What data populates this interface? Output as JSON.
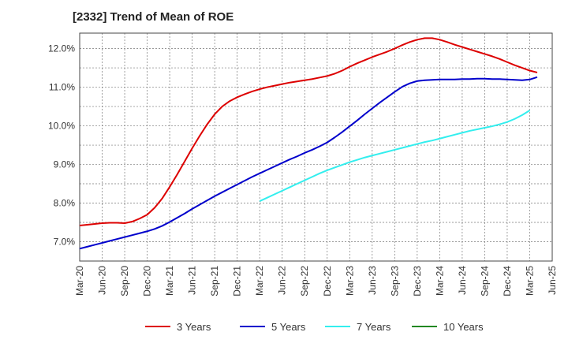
{
  "title": "[2332]  Trend of Mean of ROE",
  "chart_data": {
    "type": "line",
    "title": "[2332]  Trend of Mean of ROE",
    "xlabel": "",
    "ylabel": "",
    "ylim": [
      6.5,
      12.4
    ],
    "y_ticks": [
      7.0,
      8.0,
      9.0,
      10.0,
      11.0,
      12.0
    ],
    "y_tick_labels": [
      "7.0%",
      "8.0%",
      "9.0%",
      "10.0%",
      "11.0%",
      "12.0%"
    ],
    "x_tick_labels": [
      "Mar-20",
      "Jun-20",
      "Sep-20",
      "Dec-20",
      "Mar-21",
      "Jun-21",
      "Sep-21",
      "Dec-21",
      "Mar-22",
      "Jun-22",
      "Sep-22",
      "Dec-22",
      "Mar-23",
      "Jun-23",
      "Sep-23",
      "Dec-23",
      "Mar-24",
      "Jun-24",
      "Sep-24",
      "Dec-24",
      "Mar-25",
      "Jun-25"
    ],
    "grid": true,
    "legend_position": "bottom",
    "series": [
      {
        "name": "3 Years",
        "color": "#dd0000",
        "start_month": "Mar-20",
        "values": [
          7.42,
          7.44,
          7.46,
          7.48,
          7.49,
          7.49,
          7.48,
          7.52,
          7.6,
          7.7,
          7.88,
          8.12,
          8.42,
          8.74,
          9.08,
          9.42,
          9.74,
          10.04,
          10.3,
          10.5,
          10.64,
          10.74,
          10.82,
          10.89,
          10.95,
          11.0,
          11.04,
          11.08,
          11.12,
          11.15,
          11.18,
          11.21,
          11.25,
          11.29,
          11.35,
          11.43,
          11.53,
          11.62,
          11.7,
          11.78,
          11.85,
          11.92,
          12.0,
          12.09,
          12.17,
          12.23,
          12.27,
          12.27,
          12.23,
          12.17,
          12.1,
          12.04,
          11.98,
          11.92,
          11.86,
          11.8,
          11.73,
          11.65,
          11.57,
          11.5,
          11.43,
          11.38
        ]
      },
      {
        "name": "5 Years",
        "color": "#0000cc",
        "start_month": "Mar-20",
        "values": [
          6.82,
          6.87,
          6.92,
          6.97,
          7.02,
          7.07,
          7.12,
          7.17,
          7.22,
          7.27,
          7.33,
          7.41,
          7.51,
          7.62,
          7.73,
          7.85,
          7.96,
          8.07,
          8.18,
          8.28,
          8.38,
          8.48,
          8.58,
          8.68,
          8.77,
          8.86,
          8.95,
          9.04,
          9.13,
          9.21,
          9.3,
          9.38,
          9.47,
          9.57,
          9.7,
          9.84,
          9.99,
          10.14,
          10.3,
          10.45,
          10.6,
          10.74,
          10.88,
          11.01,
          11.1,
          11.16,
          11.18,
          11.19,
          11.2,
          11.2,
          11.2,
          11.21,
          11.21,
          11.22,
          11.22,
          11.21,
          11.21,
          11.2,
          11.19,
          11.18,
          11.2,
          11.26
        ]
      },
      {
        "name": "7 Years",
        "color": "#33eeee",
        "start_month": "Mar-22",
        "values": [
          8.05,
          8.14,
          8.23,
          8.32,
          8.41,
          8.5,
          8.59,
          8.68,
          8.77,
          8.85,
          8.92,
          8.99,
          9.06,
          9.12,
          9.18,
          9.23,
          9.28,
          9.33,
          9.38,
          9.43,
          9.48,
          9.53,
          9.58,
          9.62,
          9.67,
          9.72,
          9.77,
          9.82,
          9.87,
          9.91,
          9.95,
          9.99,
          10.04,
          10.1,
          10.18,
          10.28,
          10.4
        ]
      },
      {
        "name": "10 Years",
        "color": "#228822",
        "start_month": "",
        "values": []
      }
    ]
  }
}
